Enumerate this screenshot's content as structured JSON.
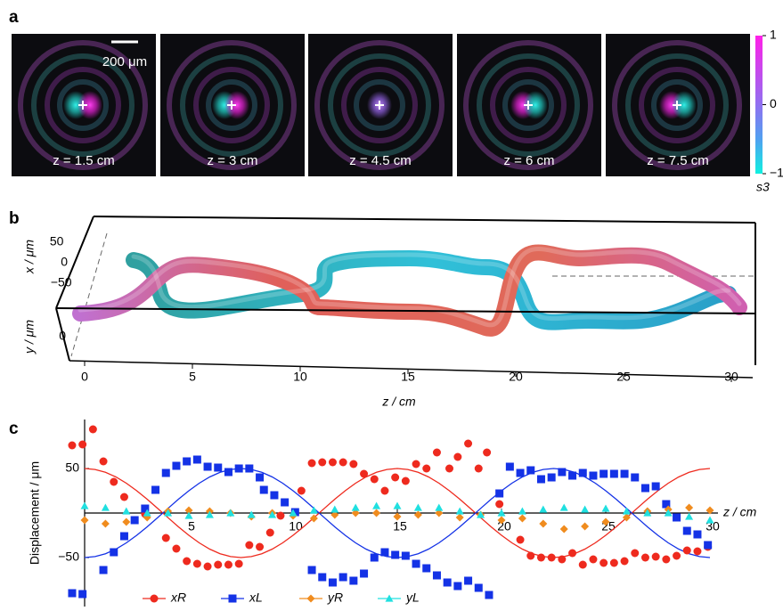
{
  "panel_labels": {
    "a": "a",
    "b": "b",
    "c": "c"
  },
  "panel_a": {
    "scale_bar": "200 μm",
    "images": [
      "z = 1.5 cm",
      "z = 3 cm",
      "z = 4.5 cm",
      "z = 6 cm",
      "z = 7.5 cm"
    ],
    "colorbar": {
      "label": "s3",
      "ticks": [
        1,
        0,
        {
          "value": -1,
          "label": "−1"
        }
      ]
    }
  },
  "panel_b": {
    "x_label": "x / μm",
    "y_label": "y / μm",
    "z_label": "z / cm",
    "x_ticks": [
      50,
      0,
      {
        "value": -50,
        "label": "−50"
      }
    ],
    "y_ticks": [
      0
    ],
    "z_ticks": [
      0,
      5,
      10,
      15,
      20,
      25,
      30
    ]
  },
  "chart_data": {
    "type": "scatter",
    "xlabel": "z / cm",
    "ylabel": "Displacement / μm",
    "xlim": [
      -1,
      31
    ],
    "ylim": [
      -105,
      105
    ],
    "xticks": [
      5,
      10,
      15,
      20,
      25,
      30
    ],
    "yticks": [
      50,
      {
        "value": -50,
        "label": "−50"
      }
    ],
    "series": [
      {
        "name": "xR",
        "color": "#ee2a1e",
        "mode": "markers",
        "marker": "circle",
        "x": [
          -0.6,
          -0.1,
          0.4,
          0.9,
          1.4,
          1.9,
          2.9,
          3.9,
          4.4,
          4.9,
          5.4,
          5.9,
          6.4,
          6.9,
          7.4,
          7.9,
          8.4,
          8.9,
          9.4,
          10.4,
          10.9,
          11.4,
          11.9,
          12.4,
          12.9,
          13.4,
          13.9,
          14.4,
          14.9,
          15.4,
          15.9,
          16.4,
          16.9,
          17.5,
          17.9,
          18.4,
          18.9,
          19.3,
          19.9,
          20.9,
          21.4,
          21.9,
          22.4,
          22.9,
          23.4,
          23.9,
          24.4,
          24.9,
          25.4,
          25.9,
          26.4,
          26.9,
          27.4,
          27.9,
          28.4,
          28.9,
          29.4,
          29.9
        ],
        "values": [
          76,
          77,
          94,
          58,
          35,
          18,
          -1,
          -28,
          -40,
          -54,
          -57,
          -60,
          -58,
          -58,
          -57,
          -36,
          -38,
          -22,
          -3,
          25,
          56,
          57,
          57,
          57,
          55,
          44,
          38,
          25,
          40,
          36,
          55,
          50,
          68,
          50,
          63,
          78,
          50,
          68,
          10,
          -30,
          -48,
          -50,
          -50,
          -52,
          -45,
          -58,
          -52,
          -56,
          -56,
          -54,
          -45,
          -50,
          -49,
          -52,
          -48,
          -42,
          -43,
          -38
        ]
      },
      {
        "name": "xL",
        "color": "#1432e6",
        "mode": "markers",
        "marker": "square",
        "x": [
          -0.6,
          -0.1,
          0.9,
          1.4,
          1.9,
          2.4,
          2.9,
          3.4,
          3.9,
          4.4,
          4.9,
          5.4,
          5.9,
          6.4,
          6.9,
          7.4,
          7.9,
          8.4,
          8.6,
          9.1,
          9.6,
          10.1,
          10.9,
          11.4,
          11.9,
          12.4,
          12.9,
          13.4,
          13.9,
          14.4,
          14.9,
          15.4,
          15.9,
          16.4,
          16.9,
          17.4,
          17.9,
          18.4,
          18.9,
          19.4,
          19.9,
          20.4,
          20.9,
          21.4,
          21.9,
          22.4,
          22.9,
          23.4,
          23.9,
          24.4,
          24.9,
          25.4,
          25.9,
          26.4,
          26.9,
          27.4,
          27.9,
          28.4,
          28.9,
          29.4,
          29.9
        ],
        "values": [
          -90,
          -91,
          -64,
          -44,
          -26,
          -8,
          5,
          26,
          45,
          53,
          58,
          60,
          52,
          51,
          46,
          50,
          50,
          40,
          26,
          20,
          12,
          1,
          -64,
          -72,
          -78,
          -72,
          -76,
          -68,
          -50,
          -44,
          -47,
          -48,
          -57,
          -62,
          -70,
          -78,
          -82,
          -76,
          -84,
          -92,
          22,
          52,
          45,
          48,
          38,
          40,
          46,
          42,
          45,
          42,
          44,
          44,
          44,
          40,
          28,
          30,
          10,
          -5,
          -20,
          -24,
          -36
        ]
      },
      {
        "name": "yR",
        "color": "#f08c1e",
        "mode": "markers",
        "marker": "diamond",
        "x": [
          0,
          1,
          2,
          3,
          4,
          5,
          6,
          7,
          8,
          9,
          10,
          11,
          12,
          13,
          14,
          15,
          16,
          17,
          18,
          19,
          20,
          21,
          22,
          23,
          24,
          25,
          26,
          27,
          28,
          29,
          30
        ],
        "values": [
          -8,
          -12,
          -10,
          -5,
          2,
          3,
          2,
          0,
          -4,
          0,
          -3,
          -6,
          -2,
          0,
          0,
          -4,
          -2,
          0,
          -5,
          -2,
          -8,
          -6,
          -12,
          -18,
          -15,
          -10,
          -5,
          2,
          4,
          6,
          3
        ]
      },
      {
        "name": "yL",
        "color": "#20e0e0",
        "mode": "markers",
        "marker": "triangle",
        "x": [
          0,
          1,
          2,
          3,
          4,
          5,
          6,
          7,
          8,
          9,
          10,
          11,
          12,
          13,
          14,
          15,
          16,
          17,
          18,
          19,
          20,
          21,
          22,
          23,
          24,
          25,
          26,
          27,
          28,
          29,
          30
        ],
        "values": [
          8,
          6,
          2,
          0,
          0,
          -3,
          -2,
          0,
          -2,
          -2,
          0,
          3,
          4,
          6,
          8,
          8,
          6,
          6,
          2,
          -2,
          0,
          2,
          4,
          6,
          4,
          5,
          2,
          0,
          0,
          -4,
          -8
        ]
      },
      {
        "color": "#ee2a1e",
        "mode": "lines",
        "x": [
          0,
          0.5,
          1,
          1.5,
          2,
          2.5,
          3,
          3.5,
          4,
          4.5,
          5,
          5.5,
          6,
          6.5,
          7,
          7.5,
          8,
          8.5,
          9,
          9.5,
          10,
          10.5,
          11,
          11.5,
          12,
          12.5,
          13,
          13.5,
          14,
          14.5,
          15,
          15.5,
          16,
          16.5,
          17,
          17.5,
          18,
          18.5,
          19,
          19.5,
          20,
          20.5,
          21,
          21.5,
          22,
          22.5,
          23,
          23.5,
          24,
          24.5,
          25,
          25.5,
          26,
          26.5,
          27,
          27.5,
          28,
          28.5,
          29,
          29.5,
          30
        ],
        "values": [
          50,
          48.9,
          45.7,
          40.5,
          33.5,
          25,
          15.5,
          5.2,
          -5.2,
          -15.5,
          -25,
          -33.5,
          -40.5,
          -45.7,
          -48.9,
          -50,
          -48.9,
          -45.7,
          -40.5,
          -33.5,
          -25,
          -15.5,
          -5.2,
          5.2,
          15.5,
          25,
          33.5,
          40.5,
          45.7,
          48.9,
          50,
          48.9,
          45.7,
          40.5,
          33.5,
          25,
          15.5,
          5.2,
          -5.2,
          -15.5,
          -25,
          -33.5,
          -40.5,
          -45.7,
          -48.9,
          -50,
          -48.9,
          -45.7,
          -40.5,
          -33.5,
          -25,
          -15.5,
          -5.2,
          5.2,
          15.5,
          25,
          33.5,
          40.5,
          45.7,
          48.9,
          50
        ]
      },
      {
        "color": "#1432e6",
        "mode": "lines",
        "x": [
          0,
          0.5,
          1,
          1.5,
          2,
          2.5,
          3,
          3.5,
          4,
          4.5,
          5,
          5.5,
          6,
          6.5,
          7,
          7.5,
          8,
          8.5,
          9,
          9.5,
          10,
          10.5,
          11,
          11.5,
          12,
          12.5,
          13,
          13.5,
          14,
          14.5,
          15,
          15.5,
          16,
          16.5,
          17,
          17.5,
          18,
          18.5,
          19,
          19.5,
          20,
          20.5,
          21,
          21.5,
          22,
          22.5,
          23,
          23.5,
          24,
          24.5,
          25,
          25.5,
          26,
          26.5,
          27,
          27.5,
          28,
          28.5,
          29,
          29.5,
          30
        ],
        "values": [
          -50,
          -48.9,
          -45.7,
          -40.5,
          -33.5,
          -25,
          -15.5,
          -5.2,
          5.2,
          15.5,
          25,
          33.5,
          40.5,
          45.7,
          48.9,
          50,
          48.9,
          45.7,
          40.5,
          33.5,
          25,
          15.5,
          5.2,
          -5.2,
          -15.5,
          -25,
          -33.5,
          -40.5,
          -45.7,
          -48.9,
          -50,
          -48.9,
          -45.7,
          -40.5,
          -33.5,
          -25,
          -15.5,
          -5.2,
          5.2,
          15.5,
          25,
          33.5,
          40.5,
          45.7,
          48.9,
          50,
          48.9,
          45.7,
          40.5,
          33.5,
          25,
          15.5,
          5.2,
          -5.2,
          -15.5,
          -25,
          -33.5,
          -40.5,
          -45.7,
          -48.9,
          -50
        ]
      }
    ]
  }
}
